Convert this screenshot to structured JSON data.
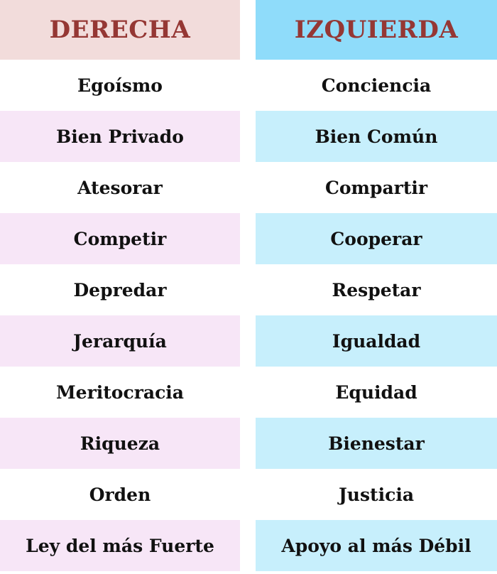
{
  "table": {
    "headers": [
      "DERECHA",
      "IZQUIERDA"
    ],
    "rows": [
      [
        "Egoísmo",
        "Conciencia"
      ],
      [
        "Bien Privado",
        "Bien Común"
      ],
      [
        "Atesorar",
        "Compartir"
      ],
      [
        "Competir",
        "Cooperar"
      ],
      [
        "Depredar",
        "Respetar"
      ],
      [
        "Jerarquía",
        "Igualdad"
      ],
      [
        "Meritocracia",
        "Equidad"
      ],
      [
        "Riqueza",
        "Bienestar"
      ],
      [
        "Orden",
        "Justicia"
      ],
      [
        "Ley del más Fuerte",
        "Apoyo al más Débil"
      ]
    ],
    "colors": {
      "header_text": "#953734",
      "left_header": "#f2dcdb",
      "right_header": "#8fdcfa",
      "left_alt_row": "#f7e6f7",
      "right_alt_row": "#c7effc"
    }
  }
}
